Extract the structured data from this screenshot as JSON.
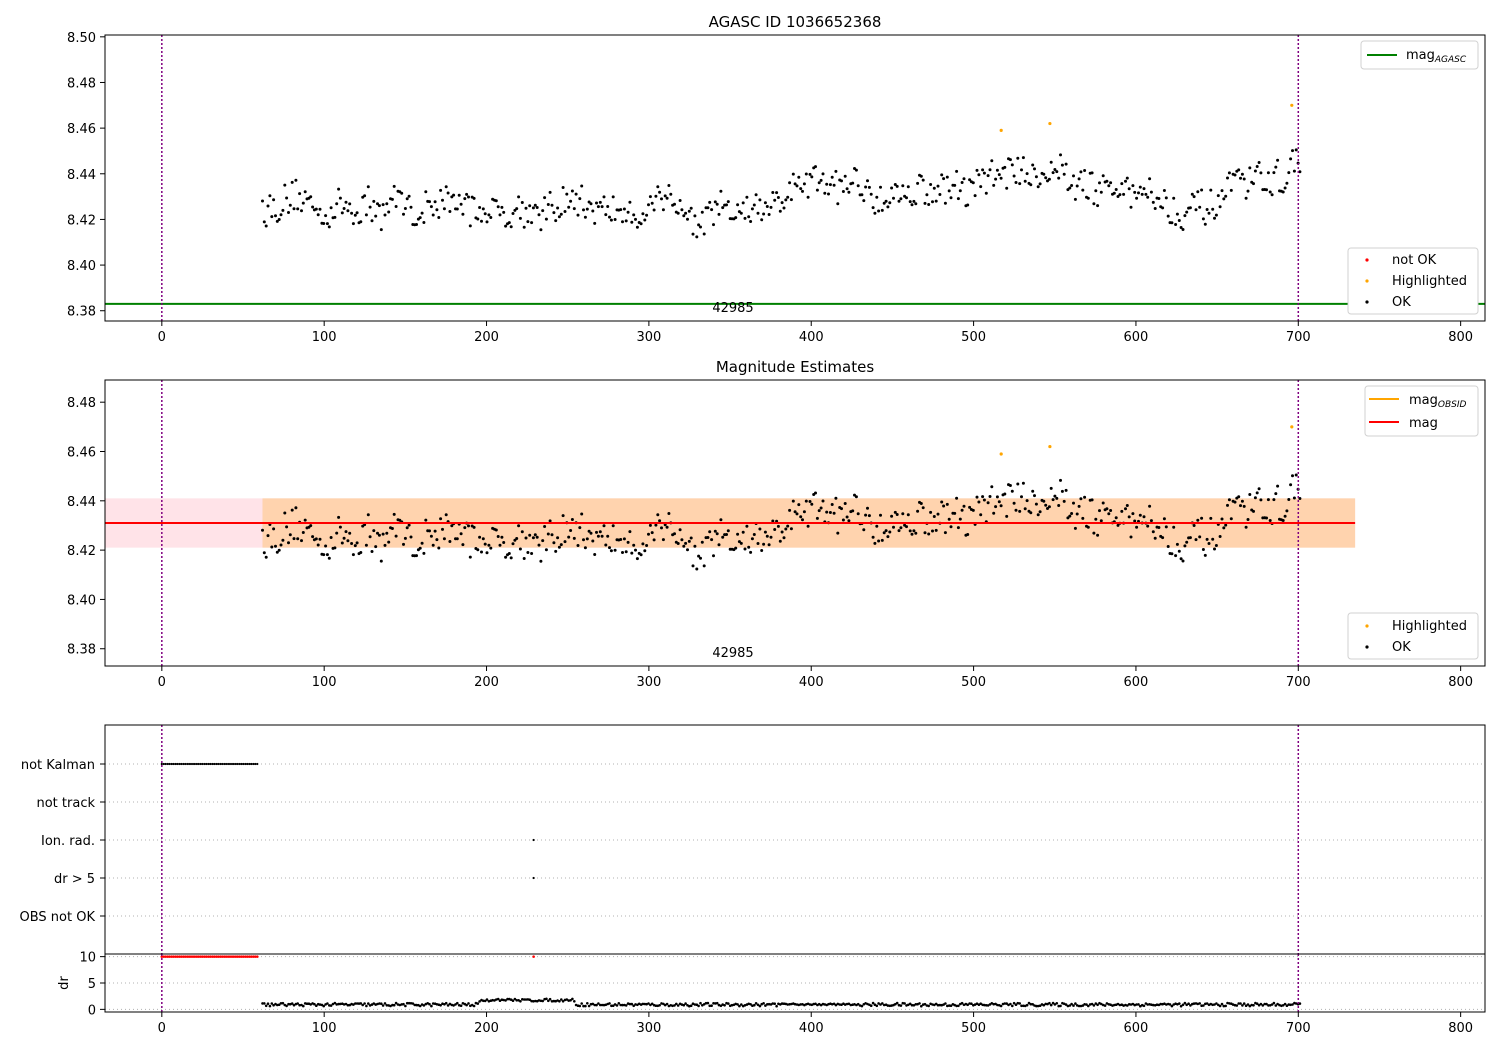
{
  "panel1": {
    "title": "AGASC ID 1036652368",
    "obsid_label": "42985",
    "legend_lines": [
      {
        "label": "mag",
        "sub": "AGASC",
        "color": "#008000"
      }
    ],
    "legend_points": [
      {
        "label": "not OK",
        "color": "#ff0000"
      },
      {
        "label": "Highlighted",
        "color": "#ffa500"
      },
      {
        "label": "OK",
        "color": "#000000"
      }
    ]
  },
  "panel2": {
    "title": "Magnitude Estimates",
    "obsid_label": "42985",
    "legend_lines": [
      {
        "label": "mag",
        "sub": "OBSID",
        "color": "#ffa500"
      },
      {
        "label": "mag",
        "sub": "",
        "color": "#ff0000"
      }
    ],
    "legend_points": [
      {
        "label": "Highlighted",
        "color": "#ffa500"
      },
      {
        "label": "OK",
        "color": "#000000"
      }
    ]
  },
  "panel3": {
    "categories": [
      "not Kalman",
      "not track",
      "Ion. rad.",
      "dr > 5",
      "OBS not OK"
    ],
    "dr_label": "dr"
  },
  "chart_data": [
    {
      "type": "scatter",
      "title": "AGASC ID 1036652368",
      "xlim": [
        -35,
        815
      ],
      "ylim": [
        8.3755,
        8.5008
      ],
      "xticks": [
        0,
        100,
        200,
        300,
        400,
        500,
        600,
        700,
        800
      ],
      "yticks": [
        8.38,
        8.4,
        8.42,
        8.44,
        8.46,
        8.48,
        8.5
      ],
      "mag_agasc": 8.383,
      "vlines": [
        0,
        700
      ],
      "series_ok": {
        "name": "OK",
        "x_range": [
          62,
          701
        ],
        "n": 560,
        "center": 8.431,
        "spread": 0.01
      },
      "highlighted": [
        [
          517,
          8.459
        ],
        [
          547,
          8.462
        ],
        [
          696,
          8.47
        ]
      ],
      "legend_loc": [
        "upper right",
        "lower right"
      ]
    },
    {
      "type": "scatter",
      "title": "Magnitude Estimates",
      "xlim": [
        -35,
        815
      ],
      "ylim": [
        8.373,
        8.489
      ],
      "xticks": [
        0,
        100,
        200,
        300,
        400,
        500,
        600,
        700,
        800
      ],
      "yticks": [
        8.38,
        8.4,
        8.42,
        8.44,
        8.46,
        8.48
      ],
      "mag": 8.431,
      "mag_obsid": 8.431,
      "band_mag": [
        8.421,
        8.441
      ],
      "band_obsid_x": [
        62,
        735
      ],
      "vlines": [
        0,
        700
      ],
      "highlighted": [
        [
          517,
          8.459
        ],
        [
          547,
          8.462
        ],
        [
          696,
          8.47
        ]
      ]
    },
    {
      "type": "scatter",
      "categories": [
        "not Kalman",
        "not track",
        "Ion. rad.",
        "dr > 5",
        "OBS not OK"
      ],
      "flags": {
        "not Kalman": {
          "x_range": [
            0,
            60
          ]
        },
        "Ion. rad.": {
          "x": [
            229
          ]
        },
        "dr > 5": {
          "x": [
            229
          ]
        }
      },
      "dr_ylim": [
        -0.5,
        10.5
      ],
      "dr_yticks": [
        0,
        5,
        10
      ],
      "dr_clipped_red": {
        "x_range": [
          0,
          60
        ],
        "extra": [
          229
        ],
        "value": 10
      },
      "dr_values": {
        "x_range": [
          62,
          701
        ],
        "typical": 1.0,
        "max": 2.0
      }
    }
  ]
}
